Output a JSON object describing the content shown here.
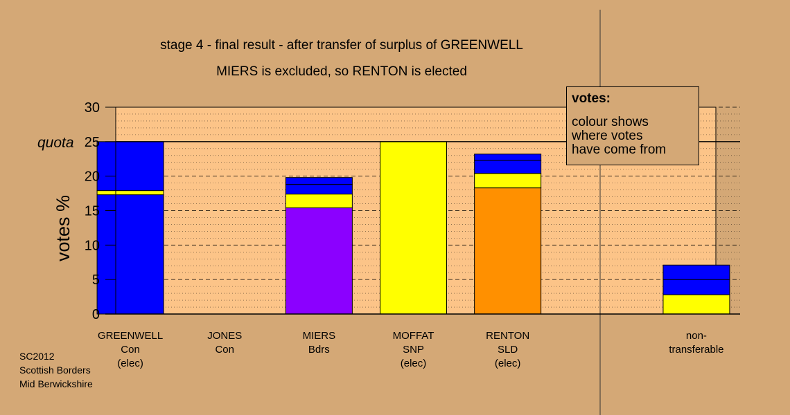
{
  "title_lines": [
    "stage 4 - final result - after transfer of surplus of GREENWELL",
    "MIERS is excluded, so RENTON is elected"
  ],
  "chart_data": {
    "type": "bar",
    "stacked": true,
    "ylabel": "votes %",
    "ylim": [
      0,
      30
    ],
    "yticks": [
      0,
      5,
      10,
      15,
      20,
      25,
      30
    ],
    "quota": {
      "label": "quota",
      "value": 25
    },
    "grid": {
      "major": "dashed every 5",
      "minor": "dotted every 1"
    },
    "categories": [
      {
        "lines": [
          "GREENWELL",
          "Con",
          "(elec)"
        ]
      },
      {
        "lines": [
          "JONES",
          "Con"
        ]
      },
      {
        "lines": [
          "MIERS",
          "Bdrs"
        ]
      },
      {
        "lines": [
          "MOFFAT",
          "SNP",
          "(elec)"
        ]
      },
      {
        "lines": [
          "RENTON",
          "SLD",
          "(elec)"
        ]
      },
      {
        "lines": []
      },
      {
        "lines": [
          "non-",
          "transferable"
        ]
      }
    ],
    "stacks": [
      [
        {
          "value": 17.3,
          "color": "#0000ff"
        },
        {
          "value": 0.6,
          "color": "#ffff00"
        },
        {
          "value": 7.1,
          "color": "#0000ff"
        }
      ],
      [],
      [
        {
          "value": 15.4,
          "color": "#8b00ff"
        },
        {
          "value": 2.0,
          "color": "#ffff00"
        },
        {
          "value": 1.4,
          "color": "#0000ff"
        },
        {
          "value": 1.0,
          "color": "#0000ff"
        }
      ],
      [
        {
          "value": 25.0,
          "color": "#ffff00"
        }
      ],
      [
        {
          "value": 18.3,
          "color": "#ff9000"
        },
        {
          "value": 2.1,
          "color": "#ffff00"
        },
        {
          "value": 1.9,
          "color": "#0000ff"
        },
        {
          "value": 0.9,
          "color": "#0000ff"
        }
      ],
      [],
      [
        {
          "value": 2.8,
          "color": "#ffff00"
        },
        {
          "value": 2.2,
          "color": "#0000ff"
        },
        {
          "value": 2.1,
          "color": "#0000ff"
        }
      ]
    ]
  },
  "legend": {
    "title": "votes:",
    "lines": [
      "colour shows",
      "where votes",
      "have come from"
    ]
  },
  "footer": [
    "SC2012",
    "Scottish Borders",
    "Mid Berwickshire"
  ],
  "colors": {
    "background": "#d4a876",
    "plot_fill": "#fcc488"
  }
}
